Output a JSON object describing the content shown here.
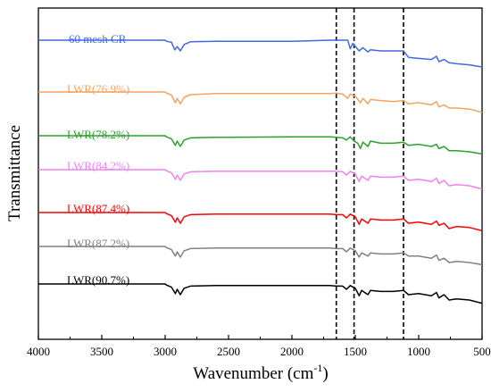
{
  "chart_data": {
    "type": "line",
    "xlabel": "Wavenumber (cm",
    "xlabel_sup": "-1",
    "xlabel_tail": ")",
    "ylabel": "Transmittance",
    "xlim": [
      4000,
      500
    ],
    "x_reversed": true,
    "y_ticks_shown": false,
    "grid": false,
    "legend": "inline labels above each trace",
    "x_ticks": [
      4000,
      3500,
      3000,
      2500,
      2000,
      1500,
      1000,
      500
    ],
    "x_tick_labels": [
      "4000",
      "3500",
      "3000",
      "2500",
      "2000",
      "1500",
      "1000",
      "500"
    ],
    "reference_lines": [
      1650,
      1510,
      1120
    ],
    "reference_line_style": "dashed",
    "series": [
      {
        "name": "60 mesh CR",
        "color": "#4169E1",
        "baseline": 0,
        "points": [
          [
            2990,
            2
          ],
          [
            2950,
            4
          ],
          [
            2925,
            18
          ],
          [
            2905,
            12
          ],
          [
            2880,
            20
          ],
          [
            2850,
            8
          ],
          [
            2800,
            3
          ],
          [
            2600,
            2
          ],
          [
            2000,
            2
          ],
          [
            1700,
            0
          ],
          [
            1560,
            0
          ],
          [
            1540,
            16
          ],
          [
            1520,
            6
          ],
          [
            1470,
            20
          ],
          [
            1440,
            14
          ],
          [
            1400,
            22
          ],
          [
            1380,
            18
          ],
          [
            1300,
            20
          ],
          [
            1200,
            20
          ],
          [
            1120,
            20
          ],
          [
            1080,
            32
          ],
          [
            1000,
            34
          ],
          [
            900,
            36
          ],
          [
            860,
            30
          ],
          [
            840,
            40
          ],
          [
            800,
            36
          ],
          [
            760,
            42
          ],
          [
            700,
            44
          ],
          [
            600,
            46
          ],
          [
            500,
            50
          ]
        ]
      },
      {
        "name": "LWR(76.9%)",
        "color": "#F4A460",
        "baseline": 0,
        "points": [
          [
            2990,
            2
          ],
          [
            2950,
            6
          ],
          [
            2920,
            20
          ],
          [
            2905,
            12
          ],
          [
            2880,
            22
          ],
          [
            2850,
            10
          ],
          [
            2800,
            5
          ],
          [
            2600,
            3
          ],
          [
            2000,
            3
          ],
          [
            1700,
            3
          ],
          [
            1650,
            2
          ],
          [
            1600,
            4
          ],
          [
            1560,
            12
          ],
          [
            1540,
            4
          ],
          [
            1500,
            8
          ],
          [
            1460,
            20
          ],
          [
            1440,
            12
          ],
          [
            1400,
            22
          ],
          [
            1380,
            14
          ],
          [
            1300,
            16
          ],
          [
            1200,
            18
          ],
          [
            1120,
            16
          ],
          [
            1080,
            22
          ],
          [
            1000,
            20
          ],
          [
            900,
            24
          ],
          [
            860,
            18
          ],
          [
            840,
            28
          ],
          [
            800,
            24
          ],
          [
            760,
            30
          ],
          [
            700,
            30
          ],
          [
            600,
            32
          ],
          [
            500,
            38
          ]
        ]
      },
      {
        "name": "LWR(78.2%)",
        "color": "#2CA02C",
        "baseline": 0,
        "points": [
          [
            2990,
            2
          ],
          [
            2950,
            6
          ],
          [
            2920,
            18
          ],
          [
            2905,
            10
          ],
          [
            2880,
            20
          ],
          [
            2850,
            8
          ],
          [
            2800,
            4
          ],
          [
            2600,
            3
          ],
          [
            2000,
            2
          ],
          [
            1700,
            2
          ],
          [
            1650,
            3
          ],
          [
            1600,
            4
          ],
          [
            1570,
            8
          ],
          [
            1540,
            2
          ],
          [
            1510,
            10
          ],
          [
            1480,
            14
          ],
          [
            1460,
            24
          ],
          [
            1440,
            12
          ],
          [
            1400,
            20
          ],
          [
            1380,
            10
          ],
          [
            1300,
            14
          ],
          [
            1200,
            14
          ],
          [
            1120,
            12
          ],
          [
            1080,
            18
          ],
          [
            1000,
            16
          ],
          [
            900,
            20
          ],
          [
            860,
            16
          ],
          [
            840,
            24
          ],
          [
            800,
            20
          ],
          [
            760,
            28
          ],
          [
            700,
            28
          ],
          [
            600,
            30
          ],
          [
            500,
            34
          ]
        ]
      },
      {
        "name": "LWR(84.2%)",
        "color": "#EE82EE",
        "baseline": 0,
        "points": [
          [
            2990,
            2
          ],
          [
            2950,
            6
          ],
          [
            2920,
            18
          ],
          [
            2905,
            10
          ],
          [
            2880,
            20
          ],
          [
            2850,
            8
          ],
          [
            2800,
            4
          ],
          [
            2600,
            3
          ],
          [
            2000,
            3
          ],
          [
            1700,
            3
          ],
          [
            1650,
            3
          ],
          [
            1600,
            4
          ],
          [
            1570,
            10
          ],
          [
            1540,
            3
          ],
          [
            1500,
            8
          ],
          [
            1470,
            22
          ],
          [
            1450,
            12
          ],
          [
            1400,
            20
          ],
          [
            1380,
            12
          ],
          [
            1300,
            14
          ],
          [
            1200,
            14
          ],
          [
            1120,
            12
          ],
          [
            1080,
            20
          ],
          [
            1000,
            18
          ],
          [
            900,
            22
          ],
          [
            860,
            16
          ],
          [
            840,
            26
          ],
          [
            800,
            20
          ],
          [
            760,
            30
          ],
          [
            700,
            28
          ],
          [
            600,
            30
          ],
          [
            500,
            36
          ]
        ]
      },
      {
        "name": "LWR(87.4%)",
        "color": "#FF0000",
        "baseline": 0,
        "points": [
          [
            2990,
            2
          ],
          [
            2950,
            6
          ],
          [
            2920,
            18
          ],
          [
            2905,
            10
          ],
          [
            2880,
            20
          ],
          [
            2850,
            8
          ],
          [
            2800,
            4
          ],
          [
            2600,
            3
          ],
          [
            2000,
            3
          ],
          [
            1700,
            3
          ],
          [
            1650,
            4
          ],
          [
            1600,
            4
          ],
          [
            1570,
            10
          ],
          [
            1540,
            3
          ],
          [
            1500,
            8
          ],
          [
            1470,
            22
          ],
          [
            1450,
            12
          ],
          [
            1400,
            20
          ],
          [
            1380,
            12
          ],
          [
            1300,
            14
          ],
          [
            1200,
            14
          ],
          [
            1120,
            12
          ],
          [
            1080,
            20
          ],
          [
            1000,
            18
          ],
          [
            900,
            22
          ],
          [
            860,
            16
          ],
          [
            840,
            24
          ],
          [
            800,
            20
          ],
          [
            760,
            30
          ],
          [
            700,
            26
          ],
          [
            600,
            28
          ],
          [
            500,
            34
          ]
        ]
      },
      {
        "name": "LWR(87.2%)",
        "color": "#808080",
        "baseline": 0,
        "points": [
          [
            2990,
            2
          ],
          [
            2950,
            6
          ],
          [
            2920,
            18
          ],
          [
            2905,
            10
          ],
          [
            2880,
            20
          ],
          [
            2850,
            8
          ],
          [
            2800,
            4
          ],
          [
            2600,
            3
          ],
          [
            2000,
            3
          ],
          [
            1700,
            3
          ],
          [
            1650,
            4
          ],
          [
            1600,
            4
          ],
          [
            1570,
            10
          ],
          [
            1540,
            3
          ],
          [
            1500,
            8
          ],
          [
            1470,
            20
          ],
          [
            1450,
            12
          ],
          [
            1400,
            18
          ],
          [
            1380,
            12
          ],
          [
            1300,
            14
          ],
          [
            1200,
            14
          ],
          [
            1120,
            12
          ],
          [
            1080,
            18
          ],
          [
            1000,
            18
          ],
          [
            900,
            22
          ],
          [
            860,
            16
          ],
          [
            840,
            26
          ],
          [
            800,
            22
          ],
          [
            760,
            30
          ],
          [
            700,
            28
          ],
          [
            600,
            30
          ],
          [
            500,
            34
          ]
        ]
      },
      {
        "name": "LWR(90.7%)",
        "color": "#000000",
        "baseline": 0,
        "points": [
          [
            2990,
            2
          ],
          [
            2950,
            6
          ],
          [
            2920,
            18
          ],
          [
            2905,
            10
          ],
          [
            2880,
            20
          ],
          [
            2850,
            8
          ],
          [
            2800,
            4
          ],
          [
            2600,
            3
          ],
          [
            2000,
            3
          ],
          [
            1700,
            3
          ],
          [
            1650,
            4
          ],
          [
            1600,
            4
          ],
          [
            1570,
            10
          ],
          [
            1540,
            3
          ],
          [
            1500,
            8
          ],
          [
            1470,
            22
          ],
          [
            1450,
            12
          ],
          [
            1400,
            20
          ],
          [
            1380,
            12
          ],
          [
            1300,
            14
          ],
          [
            1200,
            14
          ],
          [
            1120,
            12
          ],
          [
            1080,
            20
          ],
          [
            1000,
            18
          ],
          [
            900,
            22
          ],
          [
            860,
            16
          ],
          [
            840,
            26
          ],
          [
            800,
            20
          ],
          [
            760,
            30
          ],
          [
            700,
            28
          ],
          [
            600,
            30
          ],
          [
            500,
            36
          ]
        ]
      }
    ]
  }
}
